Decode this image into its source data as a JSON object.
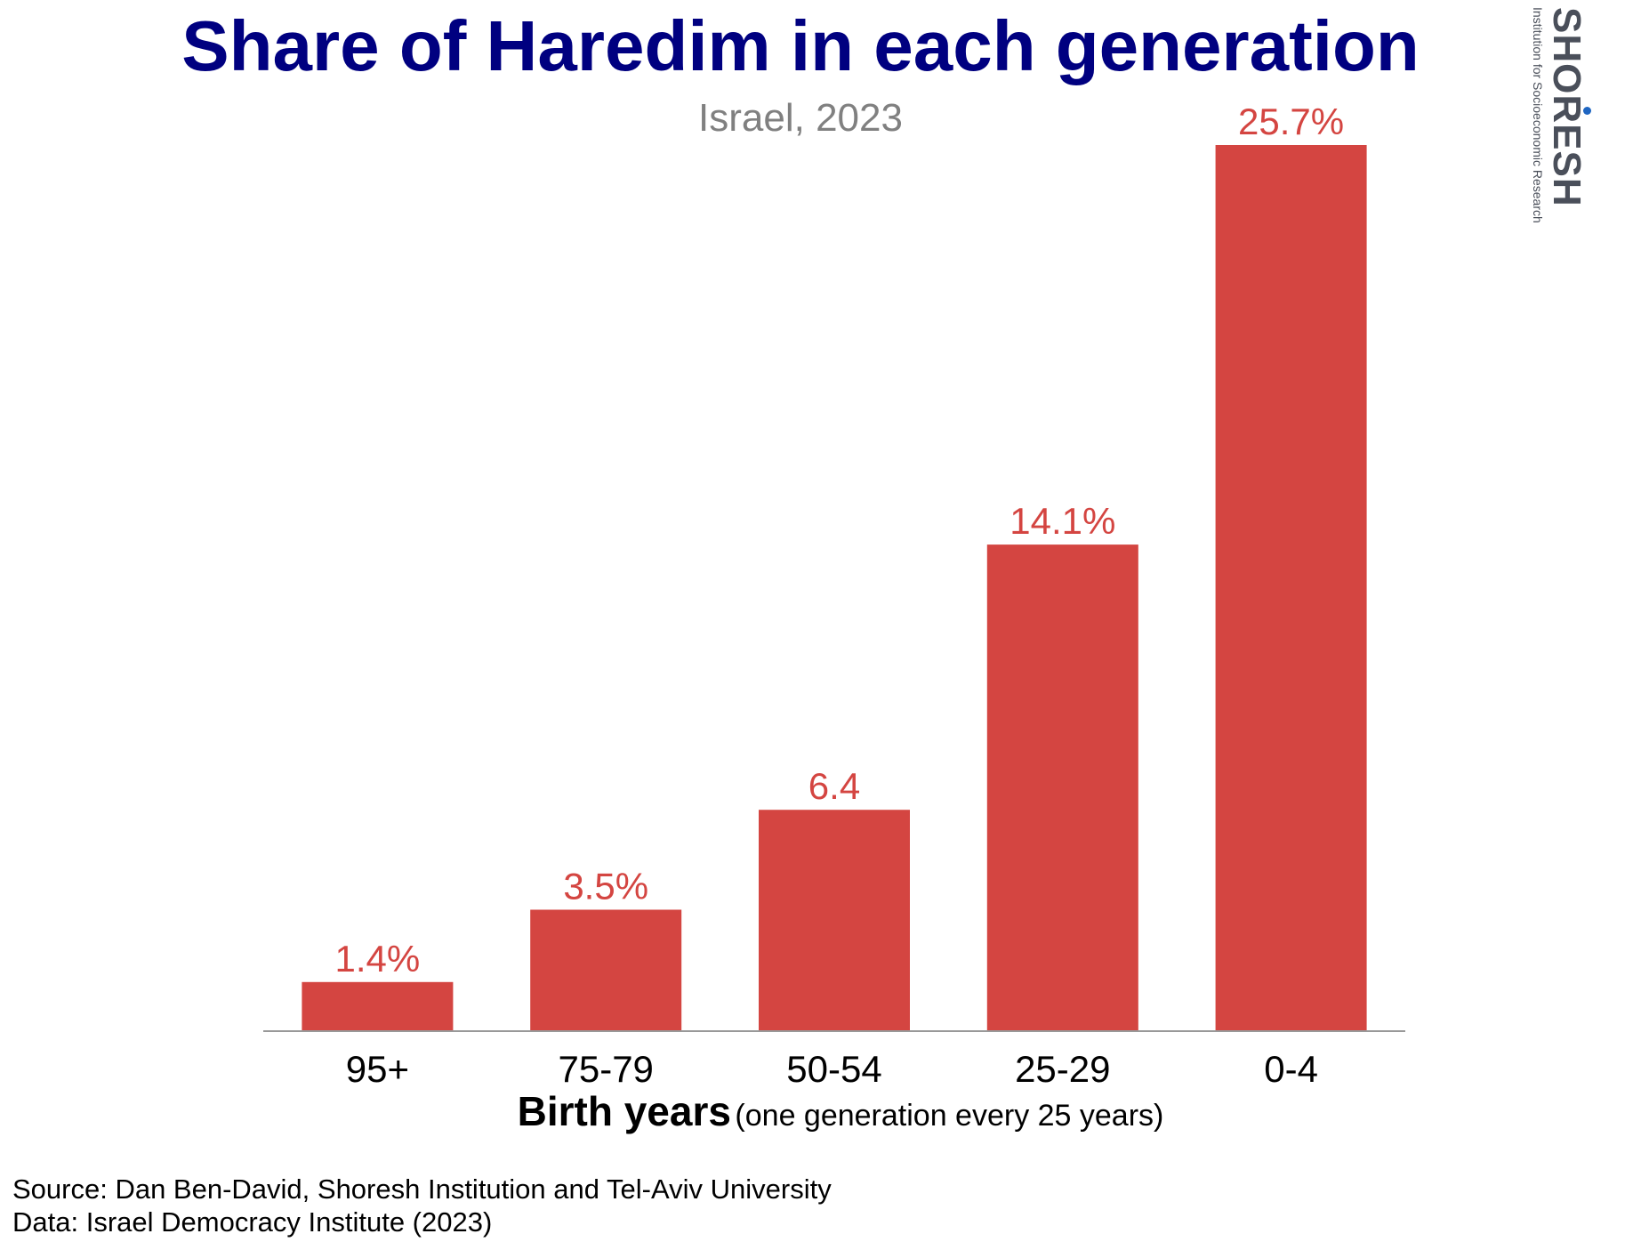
{
  "title": "Share of Haredim in each generation",
  "subtitle": "Israel, 2023",
  "logo": {
    "name": "SHORESH",
    "tagline": "Institution for Socioeconomic Research"
  },
  "chart_data": {
    "type": "bar",
    "categories": [
      "95+",
      "75-79",
      "50-54",
      "25-29",
      "0-4"
    ],
    "values": [
      1.4,
      3.5,
      6.4,
      14.1,
      25.7
    ],
    "data_labels": [
      "1.4%",
      "3.5%",
      "6.4",
      "14.1%",
      "25.7%"
    ],
    "title": "Share of Haredim in each generation",
    "subtitle": "Israel, 2023",
    "xlabel": "Birth years",
    "xlabel_note": "(one generation every 25 years)",
    "ylabel": "",
    "ylim": [
      0,
      25.7
    ],
    "grid": false,
    "legend": "none",
    "bar_color": "#d44541",
    "label_color": "#d44541",
    "axis_color": "#999999"
  },
  "source": {
    "line1": "Source: Dan Ben-David, Shoresh Institution and Tel-Aviv University",
    "line2": "Data: Israel Democracy Institute (2023)"
  }
}
